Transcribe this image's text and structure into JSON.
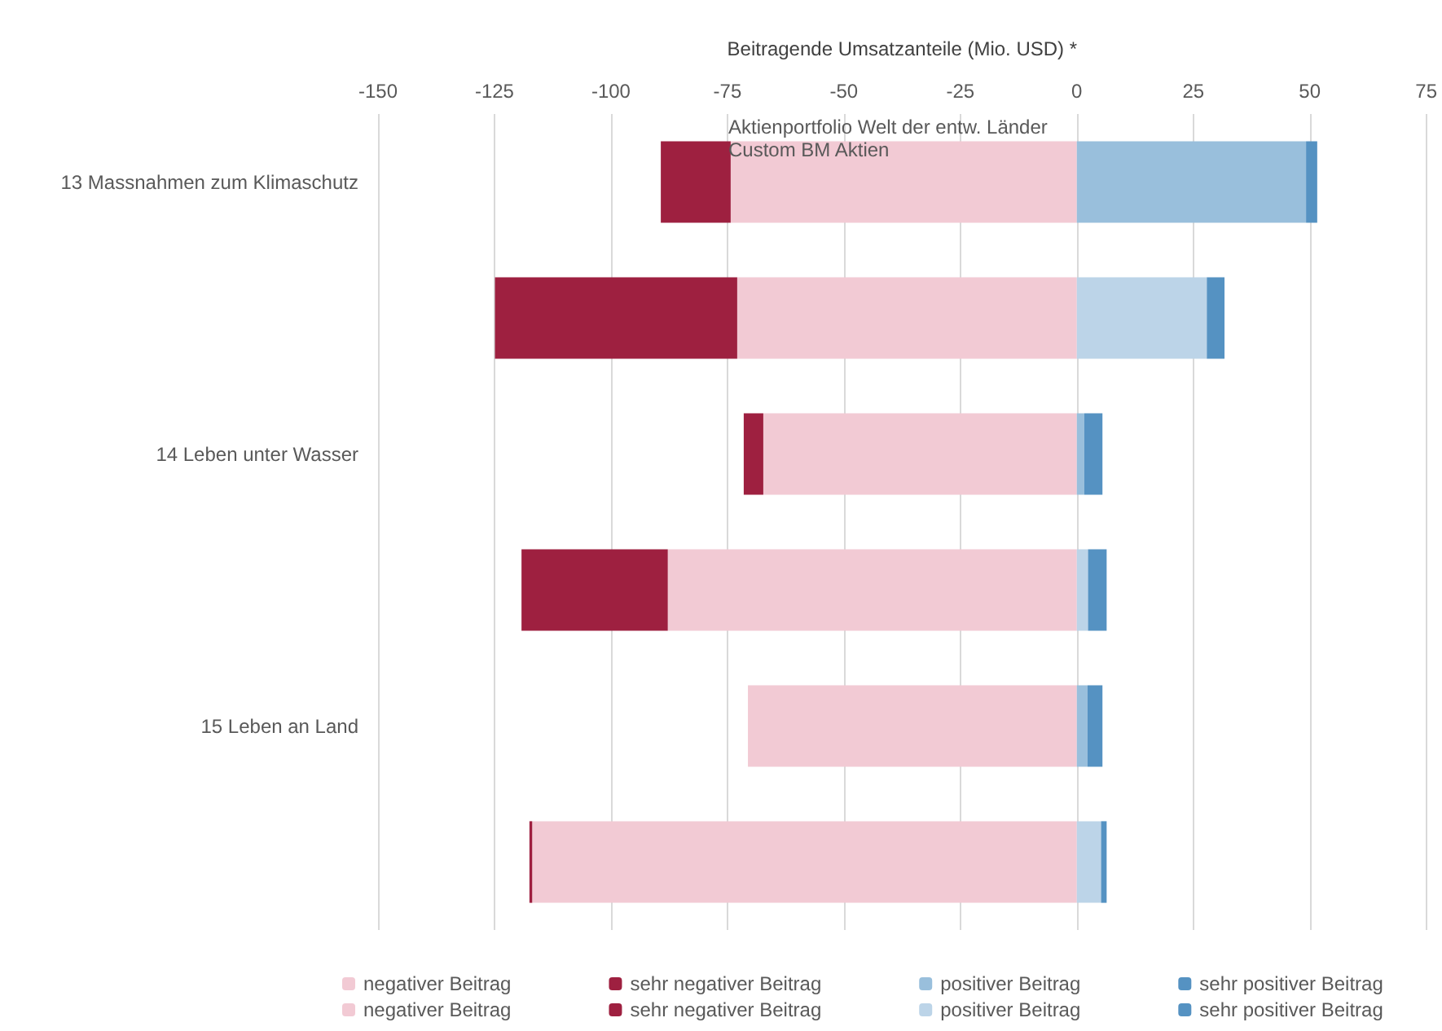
{
  "chart_data": {
    "type": "bar",
    "orientation": "horizontal",
    "stacked": true,
    "xlabel": "Beitragende Umsatzanteile (Mio. USD) *",
    "annotations": [
      "Aktienportfolio Welt der entw. Länder",
      "Custom BM Aktien"
    ],
    "categories": [
      "13 Massnahmen zum Klimaschutz",
      null,
      "14 Leben unter Wasser",
      null,
      "15 Leben an Land",
      null
    ],
    "series": [
      {
        "name": "negativer Beitrag",
        "color": "#f2cad4",
        "values": [
          -74.3,
          null,
          -67.3,
          null,
          -70.6,
          null
        ]
      },
      {
        "name": "sehr negativer Beitrag",
        "color": "#9e2040",
        "values": [
          -15,
          null,
          -4.2,
          null,
          null,
          null
        ]
      },
      {
        "name": "positiver Beitrag",
        "color": "#99bfdc",
        "values": [
          49.2,
          null,
          1.6,
          null,
          2.3,
          null
        ]
      },
      {
        "name": "sehr positiver Beitrag",
        "color": "#5592c2",
        "values": [
          2.4,
          null,
          3.9,
          null,
          3.2,
          null
        ]
      },
      {
        "name": "negativer Beitrag",
        "color": "#f2cad4",
        "values": [
          null,
          -72.9,
          null,
          -87.8,
          null,
          -116.9
        ]
      },
      {
        "name": "sehr negativer Beitrag",
        "color": "#9e2040",
        "values": [
          null,
          -52,
          null,
          -31.4,
          null,
          -0.6
        ]
      },
      {
        "name": "positiver Beitrag",
        "color": "#bcd4e8",
        "values": [
          null,
          27.9,
          null,
          2.4,
          null,
          5.2
        ]
      },
      {
        "name": "sehr positiver Beitrag",
        "color": "#5592c2",
        "values": [
          null,
          3.8,
          null,
          4.0,
          null,
          1.2
        ]
      }
    ],
    "xlim": [
      -150,
      75
    ],
    "xticks": [
      -150,
      -125,
      -100,
      -75,
      -50,
      -25,
      0,
      25,
      50,
      75
    ],
    "grid": "x",
    "legend": "bottom"
  }
}
